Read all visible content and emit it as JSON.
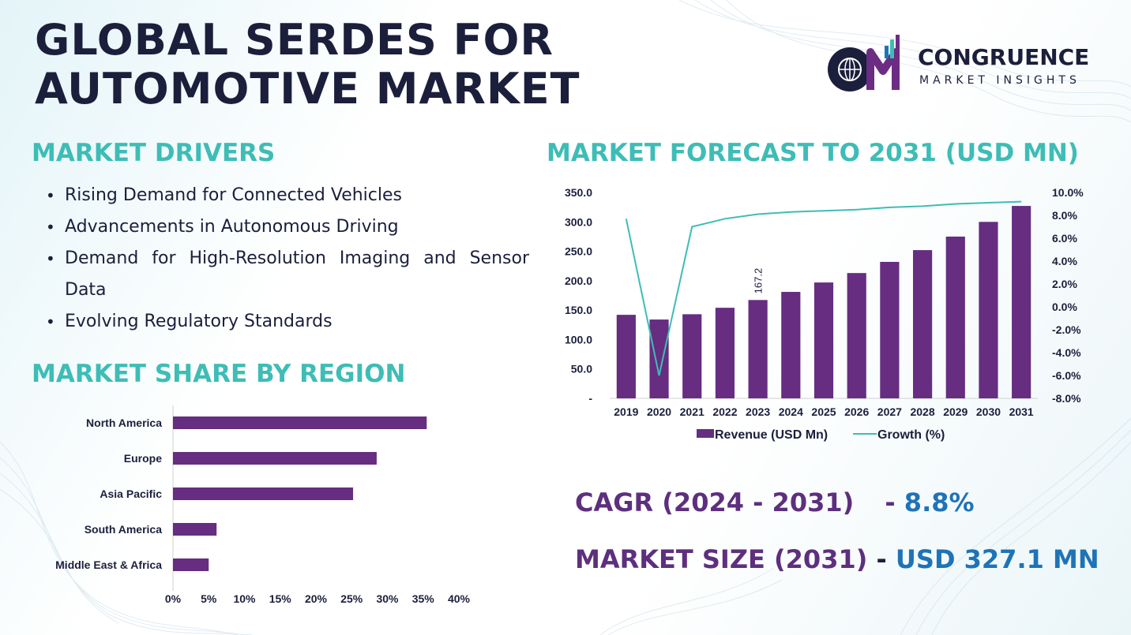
{
  "title": {
    "line1": "GLOBAL SERDES FOR",
    "line2": "AUTOMOTIVE MARKET"
  },
  "logo": {
    "initials": "CM",
    "name": "CONGRUENCE",
    "tagline": "MARKET INSIGHTS"
  },
  "drivers": {
    "heading": "MARKET DRIVERS",
    "items": [
      "Rising Demand for Connected Vehicles",
      "Advancements in Autonomous Driving",
      "Demand for High-Resolution Imaging and Sensor Data",
      "Evolving Regulatory Standards"
    ]
  },
  "share": {
    "heading": "MARKET SHARE BY REGION"
  },
  "forecast": {
    "heading": "MARKET FORECAST TO 2031 (USD MN)"
  },
  "cagr": {
    "label": "CAGR (2024 - 2031)",
    "separator": "-",
    "value": "8.8%"
  },
  "market_size": {
    "label": "MARKET SIZE (2031)",
    "separator": "-",
    "value": "USD 327.1 MN"
  },
  "colors": {
    "purple": "#662d81",
    "teal": "#3dbdb6",
    "blue": "#1f73b7",
    "navy": "#1b1f3b"
  },
  "chart_data": [
    {
      "type": "bar",
      "orientation": "horizontal",
      "categories": [
        "North America",
        "Europe",
        "Asia Pacific",
        "South America",
        "Middle East & Africa"
      ],
      "values": [
        35.5,
        28.5,
        25.2,
        6.1,
        5.0
      ],
      "xlim": [
        0,
        40
      ],
      "x_ticks": [
        "0%",
        "5%",
        "10%",
        "15%",
        "20%",
        "25%",
        "30%",
        "35%",
        "40%"
      ],
      "grid": false,
      "color": "#662d81"
    },
    {
      "type": "bar",
      "x": [
        "2019",
        "2020",
        "2021",
        "2022",
        "2023",
        "2024",
        "2025",
        "2026",
        "2027",
        "2028",
        "2029",
        "2030",
        "2031"
      ],
      "series": [
        {
          "name": "Revenue (USD Mn)",
          "type": "bar",
          "axis": "left",
          "color": "#662d81",
          "values": [
            142,
            134,
            143,
            154,
            167.2,
            181,
            197,
            213,
            232,
            252,
            275,
            300,
            327.1
          ]
        },
        {
          "name": "Growth (%)",
          "type": "line",
          "axis": "right",
          "color": "#3dbdb6",
          "values": [
            7.7,
            -6.0,
            7.0,
            7.7,
            8.1,
            8.3,
            8.4,
            8.5,
            8.7,
            8.8,
            9.0,
            9.1,
            9.2
          ]
        }
      ],
      "data_labels": [
        {
          "index": 4,
          "text": "167.2"
        }
      ],
      "y_left": {
        "ylim": [
          0,
          350
        ],
        "ticks": [
          "-",
          "50.0",
          "100.0",
          "150.0",
          "200.0",
          "250.0",
          "300.0",
          "350.0"
        ]
      },
      "y_right": {
        "ylim": [
          -8,
          10
        ],
        "ticks": [
          "-8.0%",
          "-6.0%",
          "-4.0%",
          "-2.0%",
          "0.0%",
          "2.0%",
          "4.0%",
          "6.0%",
          "8.0%",
          "10.0%"
        ]
      },
      "legend": "bottom",
      "grid": false
    }
  ]
}
